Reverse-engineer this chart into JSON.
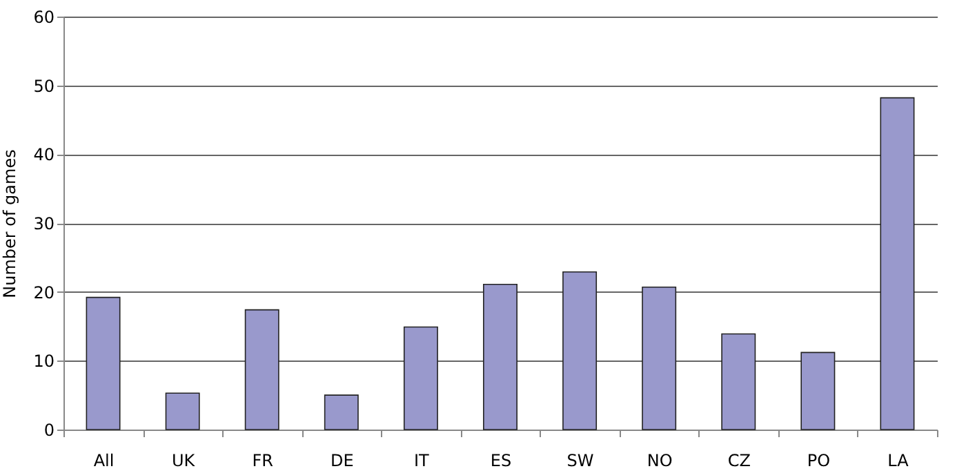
{
  "chart_data": {
    "type": "bar",
    "ylabel": "Number of games",
    "categories": [
      "All",
      "UK",
      "FR",
      "DE",
      "IT",
      "ES",
      "SW",
      "NO",
      "CZ",
      "PO",
      "LA"
    ],
    "values": [
      19.2,
      5.3,
      17.4,
      5.0,
      14.9,
      21.1,
      22.9,
      20.7,
      13.9,
      11.2,
      48.2
    ],
    "color": "#9999cc",
    "ylim": [
      0,
      60
    ],
    "yticks": [
      0,
      10,
      20,
      30,
      40,
      50,
      60
    ],
    "grid": "y"
  }
}
